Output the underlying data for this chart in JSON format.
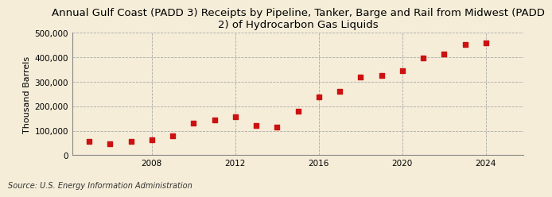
{
  "title": "Annual Gulf Coast (PADD 3) Receipts by Pipeline, Tanker, Barge and Rail from Midwest (PADD\n2) of Hydrocarbon Gas Liquids",
  "ylabel": "Thousand Barrels",
  "source": "Source: U.S. Energy Information Administration",
  "background_color": "#f5edd8",
  "plot_bg_color": "#f5edd8",
  "marker_color": "#cc1111",
  "grid_color": "#aaaaaa",
  "years": [
    2005,
    2006,
    2007,
    2008,
    2009,
    2010,
    2011,
    2012,
    2013,
    2014,
    2015,
    2016,
    2017,
    2018,
    2019,
    2020,
    2021,
    2022,
    2023,
    2024
  ],
  "values": [
    55000,
    47000,
    55000,
    63000,
    80000,
    130000,
    143000,
    158000,
    122000,
    115000,
    180000,
    237000,
    260000,
    320000,
    327000,
    345000,
    397000,
    415000,
    452000,
    458000
  ],
  "ylim": [
    0,
    500000
  ],
  "yticks": [
    0,
    100000,
    200000,
    300000,
    400000,
    500000
  ],
  "ytick_labels": [
    "0",
    "100,000",
    "200,000",
    "300,000",
    "400,000",
    "500,000"
  ],
  "xticks": [
    2008,
    2012,
    2016,
    2020,
    2024
  ],
  "xlim": [
    2004.2,
    2025.8
  ],
  "title_fontsize": 9.5,
  "label_fontsize": 8,
  "tick_fontsize": 7.5,
  "source_fontsize": 7
}
